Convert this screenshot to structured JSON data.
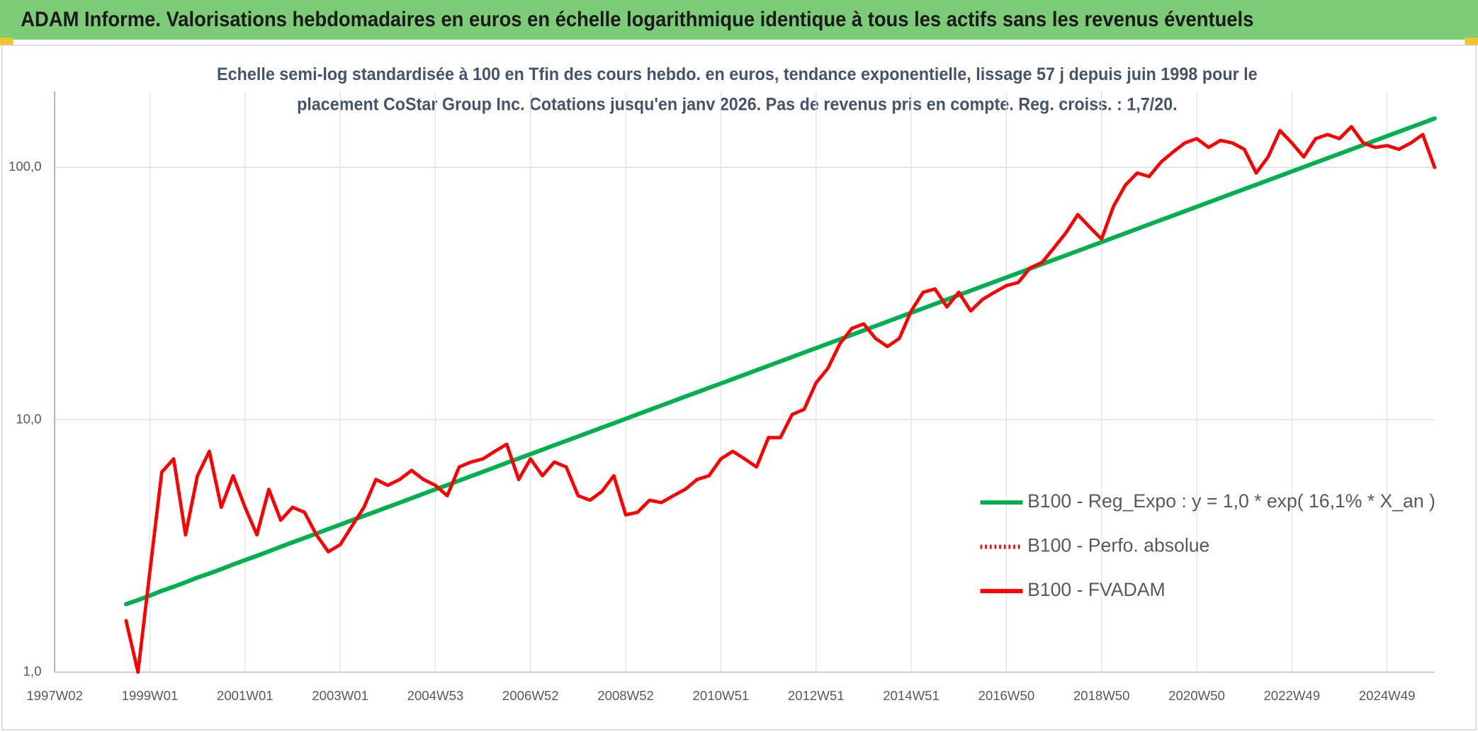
{
  "chart_data": {
    "type": "line",
    "title": "ADAM Informe. Valorisations hebdomadaires en euros en échelle logarithmique identique à tous les actifs sans les revenus éventuels",
    "subtitle": [
      "Echelle semi-log standardisée à 100 en Tfin des cours hebdo. en euros, tendance exponentielle, lissage 57 j depuis juin 1998 pour le",
      "placement CoStar Group Inc. Cotations jusqu'en janv 2026. Pas de revenus pris en compte. Reg. croiss. : 1,7/20."
    ],
    "categories": [
      "1997W02",
      null,
      null,
      null,
      null,
      null,
      null,
      null,
      "1999W01",
      null,
      null,
      null,
      null,
      null,
      null,
      null,
      "2001W01",
      null,
      null,
      null,
      null,
      null,
      null,
      null,
      "2003W01",
      null,
      null,
      null,
      null,
      null,
      null,
      null,
      "2004W53",
      null,
      null,
      null,
      null,
      null,
      null,
      null,
      "2006W52",
      null,
      null,
      null,
      null,
      null,
      null,
      null,
      "2008W52",
      null,
      null,
      null,
      null,
      null,
      null,
      null,
      "2010W51",
      null,
      null,
      null,
      null,
      null,
      null,
      null,
      "2012W51",
      null,
      null,
      null,
      null,
      null,
      null,
      null,
      "2014W51",
      null,
      null,
      null,
      null,
      null,
      null,
      null,
      "2016W50",
      null,
      null,
      null,
      null,
      null,
      null,
      null,
      "2018W50",
      null,
      null,
      null,
      null,
      null,
      null,
      null,
      "2020W50",
      null,
      null,
      null,
      null,
      null,
      null,
      null,
      "2022W49",
      null,
      null,
      null,
      null,
      null,
      null,
      null,
      "2024W49",
      null,
      null,
      null,
      null
    ],
    "series": [
      {
        "name": "B100 - Reg_Expo : y = 1,0 * exp( 16,1% *  X_an )",
        "color": "#00b050",
        "dash": "solid",
        "values": [
          null,
          null,
          null,
          null,
          null,
          null,
          1.86,
          1.93,
          2.01,
          2.1,
          2.18,
          2.27,
          2.37,
          2.46,
          2.56,
          2.67,
          2.78,
          2.89,
          3.01,
          3.14,
          3.27,
          3.4,
          3.54,
          3.69,
          3.84,
          4.0,
          4.16,
          4.33,
          4.51,
          4.69,
          4.89,
          5.09,
          5.3,
          5.51,
          5.74,
          5.98,
          6.22,
          6.48,
          6.75,
          7.02,
          7.31,
          7.61,
          7.93,
          8.25,
          8.59,
          8.94,
          9.31,
          9.69,
          10.09,
          10.51,
          10.94,
          11.39,
          11.86,
          12.35,
          12.85,
          13.38,
          13.93,
          14.5,
          15.1,
          15.72,
          16.37,
          17.04,
          17.74,
          18.47,
          19.23,
          20.02,
          20.84,
          21.7,
          22.59,
          23.52,
          24.49,
          25.5,
          26.55,
          27.64,
          28.77,
          29.96,
          31.19,
          32.47,
          33.81,
          35.2,
          36.64,
          38.15,
          39.72,
          41.35,
          43.05,
          44.82,
          46.67,
          48.59,
          50.58,
          52.66,
          54.83,
          57.08,
          59.43,
          61.88,
          64.42,
          67.07,
          69.82,
          72.69,
          75.68,
          78.79,
          82.04,
          85.41,
          88.92,
          92.58,
          96.38,
          100.35,
          104.47,
          108.77,
          113.24,
          117.9,
          122.74,
          127.79,
          133.05,
          138.52,
          144.21,
          150.14,
          156.31
        ]
      },
      {
        "name": "B100 - Perfo. absolue",
        "color": "#ff0000",
        "dash": "dotted",
        "values": [
          null,
          null,
          null,
          null,
          null,
          null,
          1.6,
          1.0,
          2.5,
          6.2,
          7.0,
          3.5,
          6.0,
          7.5,
          4.5,
          6.0,
          4.5,
          3.5,
          5.3,
          4.0,
          4.5,
          4.3,
          3.5,
          3.0,
          3.2,
          3.8,
          4.5,
          5.8,
          5.5,
          5.8,
          6.3,
          5.8,
          5.5,
          5.0,
          6.5,
          6.8,
          7.0,
          7.5,
          8.0,
          5.8,
          7.0,
          6.0,
          6.8,
          6.5,
          5.0,
          4.8,
          5.2,
          6.0,
          4.2,
          4.3,
          4.8,
          4.7,
          5.0,
          5.3,
          5.8,
          6.0,
          7.0,
          7.5,
          7.0,
          6.5,
          8.5,
          8.5,
          10.5,
          11.0,
          14.0,
          16.0,
          20,
          23,
          24,
          21,
          19.5,
          21,
          27,
          32,
          33,
          28,
          32,
          27,
          30,
          32,
          34,
          35,
          40,
          42,
          48,
          55,
          65,
          58,
          52,
          70,
          85,
          95,
          92,
          105,
          115,
          125,
          130,
          120,
          128,
          125,
          118,
          95,
          110,
          140,
          125,
          110,
          130,
          135,
          130,
          145,
          125,
          120,
          122,
          118,
          125,
          135,
          100
        ]
      },
      {
        "name": "B100 - FVADAM",
        "color": "#ff0000",
        "dash": "solid",
        "values": [
          null,
          null,
          null,
          null,
          null,
          null,
          1.6,
          1.0,
          2.5,
          6.2,
          7.0,
          3.5,
          6.0,
          7.5,
          4.5,
          6.0,
          4.5,
          3.5,
          5.3,
          4.0,
          4.5,
          4.3,
          3.5,
          3.0,
          3.2,
          3.8,
          4.5,
          5.8,
          5.5,
          5.8,
          6.3,
          5.8,
          5.5,
          5.0,
          6.5,
          6.8,
          7.0,
          7.5,
          8.0,
          5.8,
          7.0,
          6.0,
          6.8,
          6.5,
          5.0,
          4.8,
          5.2,
          6.0,
          4.2,
          4.3,
          4.8,
          4.7,
          5.0,
          5.3,
          5.8,
          6.0,
          7.0,
          7.5,
          7.0,
          6.5,
          8.5,
          8.5,
          10.5,
          11.0,
          14.0,
          16.0,
          20,
          23,
          24,
          21,
          19.5,
          21,
          27,
          32,
          33,
          28,
          32,
          27,
          30,
          32,
          34,
          35,
          40,
          42,
          48,
          55,
          65,
          58,
          52,
          70,
          85,
          95,
          92,
          105,
          115,
          125,
          130,
          120,
          128,
          125,
          118,
          95,
          110,
          140,
          125,
          110,
          130,
          135,
          130,
          145,
          125,
          120,
          122,
          118,
          125,
          135,
          100
        ]
      }
    ],
    "ylim": [
      1,
      200
    ],
    "yticks": [
      {
        "value": 1,
        "label": "1,0"
      },
      {
        "value": 10,
        "label": "10,0"
      },
      {
        "value": 100,
        "label": "100,0"
      }
    ],
    "log_scale": true,
    "grid": true,
    "legend": "right"
  }
}
